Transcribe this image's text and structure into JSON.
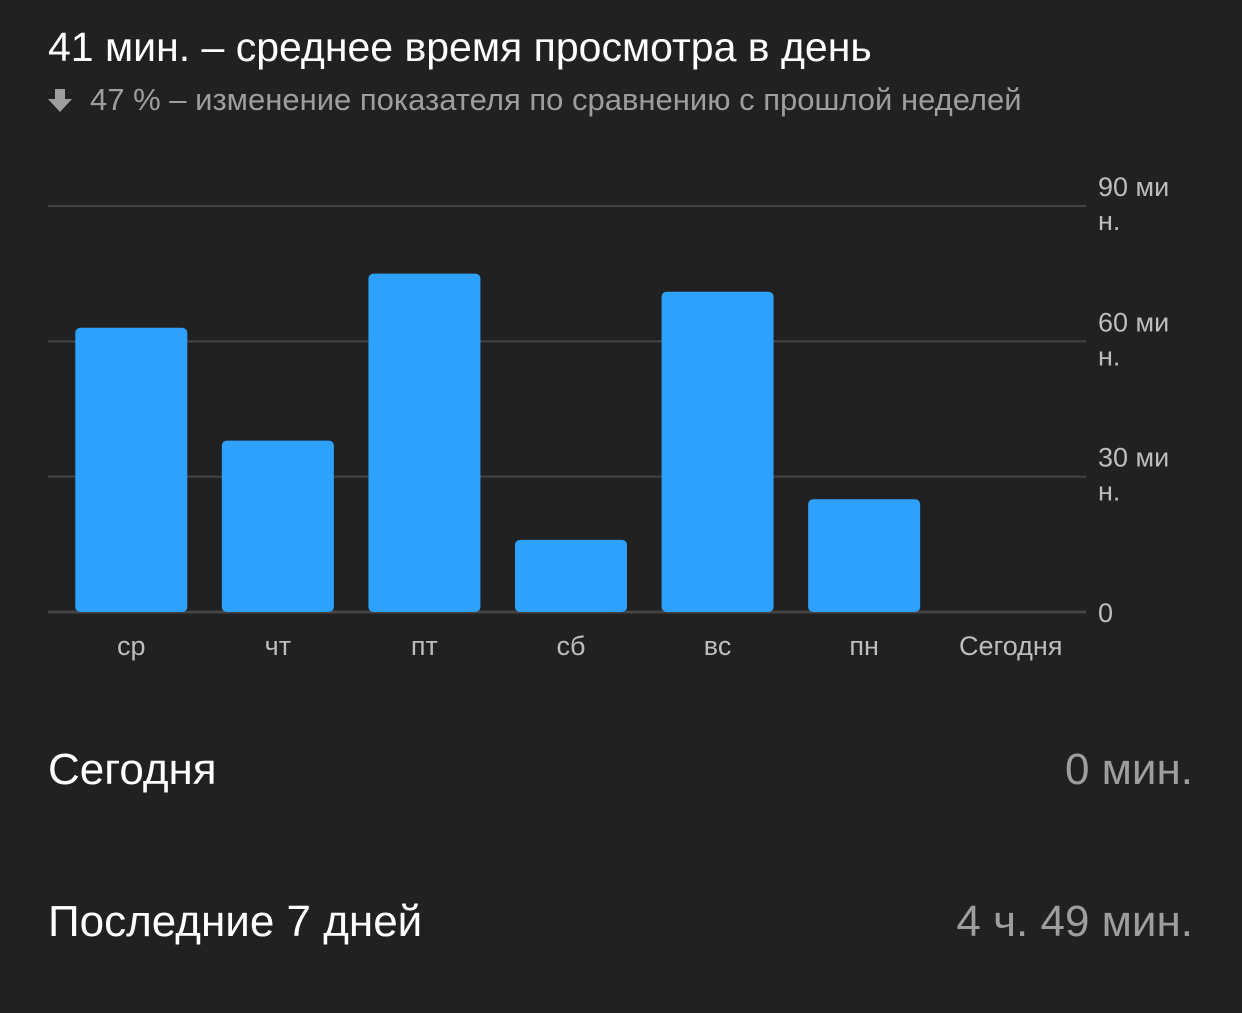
{
  "header": {
    "title": "41 мин. – среднее время просмотра в день",
    "trend_icon": "arrow-down-icon",
    "subtitle": "47 % – изменение показателя по сравнению с прошлой неделей"
  },
  "chart_data": {
    "type": "bar",
    "categories": [
      "ср",
      "чт",
      "пт",
      "сб",
      "вс",
      "пн",
      "Сегодня"
    ],
    "values": [
      63,
      38,
      75,
      16,
      71,
      25,
      0
    ],
    "ylim": [
      0,
      90
    ],
    "yticks": [
      {
        "value": 90,
        "line1": "90 ми",
        "line2": "н."
      },
      {
        "value": 60,
        "line1": "60 ми",
        "line2": "н."
      },
      {
        "value": 30,
        "line1": "30 ми",
        "line2": "н."
      },
      {
        "value": 0,
        "line1": "0",
        "line2": ""
      }
    ],
    "grid": true,
    "bar_color": "#2ea1ff",
    "grid_color": "#444444"
  },
  "summary": {
    "today_label": "Сегодня",
    "today_value": "0 мин.",
    "week_label": "Последние 7 дней",
    "week_value": "4 ч. 49 мин."
  }
}
